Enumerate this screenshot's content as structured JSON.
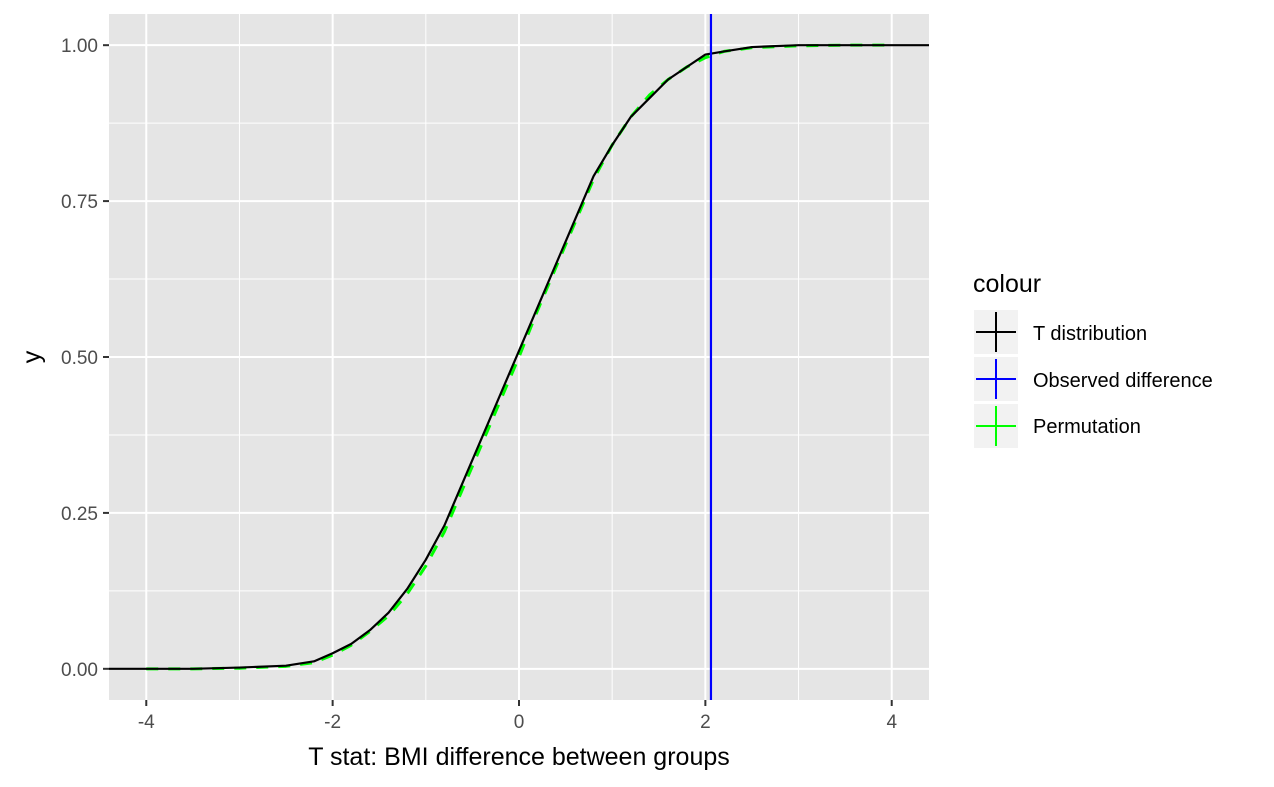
{
  "chart_data": {
    "type": "line",
    "xlabel": "T stat: BMI difference between groups",
    "ylabel": "y",
    "xlim": [
      -4.4,
      4.4
    ],
    "ylim": [
      -0.05,
      1.05
    ],
    "x_ticks": [
      -4,
      -2,
      0,
      2,
      4
    ],
    "x_tick_labels": [
      "-4",
      "-2",
      "0",
      "2",
      "4"
    ],
    "y_ticks": [
      0,
      0.25,
      0.5,
      0.75,
      1
    ],
    "y_tick_labels": [
      "0.00",
      "0.25",
      "0.50",
      "0.75",
      "1.00"
    ],
    "grid": true,
    "legend": {
      "title": "colour",
      "position": "right",
      "entries": [
        "T distribution",
        "Observed difference",
        "Permutation"
      ]
    },
    "colors": {
      "panel_background": "#E5E5E5",
      "grid": "#FFFFFF",
      "t_distribution": "#000000",
      "observed_difference": "#0000FF",
      "permutation": "#00FF00"
    },
    "series": [
      {
        "name": "T distribution",
        "style": "solid",
        "x": [
          -4.4,
          -4.0,
          -3.5,
          -3.0,
          -2.5,
          -2.2,
          -2.0,
          -1.8,
          -1.6,
          -1.4,
          -1.2,
          -1.0,
          -0.8,
          -0.6,
          -0.4,
          -0.2,
          0.0,
          0.2,
          0.4,
          0.6,
          0.8,
          1.0,
          1.2,
          1.4,
          1.6,
          1.8,
          2.0,
          2.2,
          2.5,
          3.0,
          3.5,
          4.0,
          4.4
        ],
        "y": [
          0.0,
          0.0,
          0.0,
          0.002,
          0.005,
          0.012,
          0.025,
          0.04,
          0.062,
          0.09,
          0.128,
          0.175,
          0.23,
          0.3,
          0.37,
          0.44,
          0.51,
          0.58,
          0.65,
          0.72,
          0.79,
          0.84,
          0.885,
          0.915,
          0.945,
          0.965,
          0.985,
          0.99,
          0.997,
          1.0,
          1.0,
          1.0,
          1.0
        ]
      },
      {
        "name": "Permutation",
        "style": "dashed",
        "x": [
          -4.0,
          -3.5,
          -3.0,
          -2.5,
          -2.2,
          -2.0,
          -1.8,
          -1.6,
          -1.4,
          -1.2,
          -1.0,
          -0.8,
          -0.6,
          -0.4,
          -0.2,
          0.0,
          0.2,
          0.4,
          0.6,
          0.8,
          1.0,
          1.2,
          1.4,
          1.6,
          1.8,
          2.0,
          2.2,
          2.5,
          3.0,
          3.5,
          4.0
        ],
        "y": [
          0.0,
          0.0,
          0.001,
          0.004,
          0.01,
          0.022,
          0.038,
          0.06,
          0.085,
          0.12,
          0.165,
          0.22,
          0.29,
          0.36,
          0.43,
          0.5,
          0.575,
          0.645,
          0.715,
          0.785,
          0.84,
          0.885,
          0.92,
          0.945,
          0.965,
          0.98,
          0.99,
          0.996,
          0.999,
          1.0,
          1.0
        ]
      }
    ],
    "vline": {
      "name": "Observed difference",
      "x": 2.06
    }
  }
}
